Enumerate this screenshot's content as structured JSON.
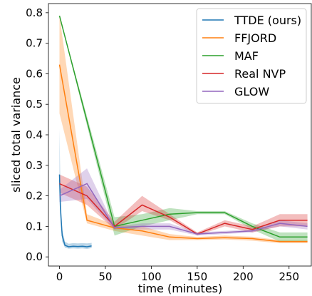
{
  "chart_data": {
    "type": "line",
    "xlabel": "time (minutes)",
    "ylabel": "sliced total variance",
    "xlim": [
      -12,
      275
    ],
    "ylim": [
      -0.03,
      0.83
    ],
    "x_ticks": [
      0,
      50,
      100,
      150,
      200,
      250
    ],
    "y_ticks": [
      0.0,
      0.1,
      0.2,
      0.3,
      0.4,
      0.5,
      0.6,
      0.7,
      0.8
    ],
    "x_tick_labels": [
      "0",
      "50",
      "100",
      "150",
      "200",
      "250"
    ],
    "y_tick_labels": [
      "0.0",
      "0.1",
      "0.2",
      "0.3",
      "0.4",
      "0.5",
      "0.6",
      "0.7",
      "0.8"
    ],
    "grid": false,
    "legend_position": "upper right",
    "series": [
      {
        "name": "TTDE (ours)",
        "color": "#1f77b4",
        "x": [
          0,
          1,
          3,
          6,
          10,
          15,
          20,
          25,
          30,
          35
        ],
        "y": [
          0.27,
          0.16,
          0.07,
          0.038,
          0.033,
          0.035,
          0.034,
          0.035,
          0.033,
          0.036
        ],
        "lower": [
          0.26,
          0.13,
          0.05,
          0.03,
          0.027,
          0.028,
          0.027,
          0.028,
          0.026,
          0.029
        ],
        "upper": [
          0.42,
          0.22,
          0.09,
          0.05,
          0.043,
          0.045,
          0.044,
          0.045,
          0.044,
          0.046
        ]
      },
      {
        "name": "FFJORD",
        "color": "#ff7f0e",
        "x": [
          0,
          30,
          60,
          90,
          120,
          150,
          180,
          210,
          240,
          270
        ],
        "y": [
          0.63,
          0.12,
          0.095,
          0.085,
          0.065,
          0.06,
          0.063,
          0.06,
          0.05,
          0.05
        ],
        "lower": [
          0.47,
          0.11,
          0.085,
          0.07,
          0.055,
          0.055,
          0.057,
          0.053,
          0.045,
          0.045
        ],
        "upper": [
          0.79,
          0.14,
          0.105,
          0.1,
          0.075,
          0.065,
          0.07,
          0.066,
          0.055,
          0.055
        ]
      },
      {
        "name": "MAF",
        "color": "#2ca02c",
        "x": [
          0,
          60,
          90,
          120,
          150,
          180,
          210,
          240,
          270
        ],
        "y": [
          0.79,
          0.1,
          0.12,
          0.14,
          0.145,
          0.145,
          0.1,
          0.065,
          0.065
        ],
        "lower": [
          0.79,
          0.07,
          0.1,
          0.12,
          0.14,
          0.14,
          0.09,
          0.05,
          0.05
        ],
        "upper": [
          0.79,
          0.13,
          0.14,
          0.16,
          0.15,
          0.15,
          0.11,
          0.08,
          0.08
        ]
      },
      {
        "name": "Real NVP",
        "color": "#d62728",
        "x": [
          0,
          30,
          60,
          90,
          120,
          150,
          180,
          210,
          240,
          270
        ],
        "y": [
          0.24,
          0.2,
          0.1,
          0.17,
          0.13,
          0.075,
          0.11,
          0.09,
          0.12,
          0.12
        ],
        "lower": [
          0.21,
          0.17,
          0.09,
          0.15,
          0.12,
          0.07,
          0.1,
          0.08,
          0.1,
          0.1
        ],
        "upper": [
          0.27,
          0.23,
          0.115,
          0.2,
          0.14,
          0.08,
          0.12,
          0.1,
          0.14,
          0.14
        ]
      },
      {
        "name": "GLOW",
        "color": "#9467bd",
        "x": [
          0,
          30,
          60,
          90,
          120,
          150,
          180,
          210,
          240,
          270
        ],
        "y": [
          0.2,
          0.24,
          0.095,
          0.1,
          0.1,
          0.075,
          0.08,
          0.085,
          0.11,
          0.1
        ],
        "lower": [
          0.18,
          0.19,
          0.09,
          0.09,
          0.09,
          0.07,
          0.075,
          0.08,
          0.1,
          0.09
        ],
        "upper": [
          0.22,
          0.29,
          0.1,
          0.11,
          0.11,
          0.08,
          0.085,
          0.09,
          0.12,
          0.11
        ]
      }
    ]
  }
}
